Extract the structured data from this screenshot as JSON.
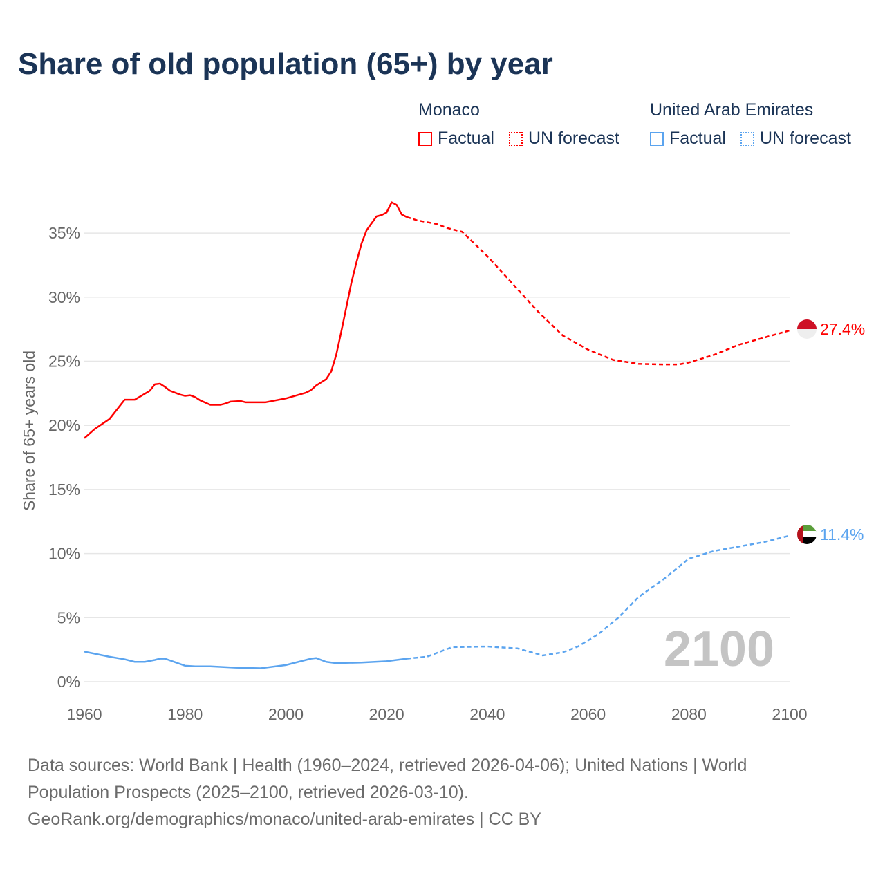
{
  "title": "Share of old population (65+) by year",
  "legend": {
    "groups": [
      {
        "name": "Monaco",
        "factual": "Factual",
        "forecast": "UN forecast",
        "color": "#ff0000"
      },
      {
        "name": "United Arab Emirates",
        "factual": "Factual",
        "forecast": "UN forecast",
        "color": "#5ba4ef"
      }
    ]
  },
  "year_label": "2100",
  "footer": {
    "sources": "Data sources: World Bank | Health (1960–2024, retrieved 2026-04-06); United Nations | World Population Prospects (2025–2100, retrieved 2026-03-10).",
    "link": "GeoRank.org/demographics/monaco/united-arab-emirates | CC BY"
  },
  "chart_data": {
    "type": "line",
    "title": "Share of old population (65+) by year",
    "xlabel": "",
    "ylabel": "Share of 65+ years old",
    "xlim": [
      1960,
      2100
    ],
    "ylim": [
      0,
      37.5
    ],
    "x_ticks": [
      "1960",
      "1980",
      "2000",
      "2020",
      "2040",
      "2060",
      "2080",
      "2100"
    ],
    "y_ticks": [
      "0%",
      "5%",
      "10%",
      "15%",
      "20%",
      "25%",
      "30%",
      "35%"
    ],
    "grid": true,
    "series": [
      {
        "name": "Monaco",
        "color": "#ff0000",
        "end_label": "27.4%",
        "factual": [
          [
            1960,
            19.0
          ],
          [
            1962,
            19.7
          ],
          [
            1965,
            20.5
          ],
          [
            1968,
            22.0
          ],
          [
            1970,
            22.0
          ],
          [
            1973,
            22.7
          ],
          [
            1974,
            23.2
          ],
          [
            1975,
            23.25
          ],
          [
            1976,
            23.0
          ],
          [
            1977,
            22.7
          ],
          [
            1979,
            22.4
          ],
          [
            1980,
            22.3
          ],
          [
            1981,
            22.35
          ],
          [
            1982,
            22.2
          ],
          [
            1983,
            21.95
          ],
          [
            1985,
            21.6
          ],
          [
            1987,
            21.6
          ],
          [
            1988,
            21.7
          ],
          [
            1989,
            21.85
          ],
          [
            1991,
            21.9
          ],
          [
            1992,
            21.8
          ],
          [
            1996,
            21.8
          ],
          [
            2000,
            22.1
          ],
          [
            2004,
            22.55
          ],
          [
            2005,
            22.75
          ],
          [
            2006,
            23.1
          ],
          [
            2007,
            23.35
          ],
          [
            2008,
            23.6
          ],
          [
            2009,
            24.2
          ],
          [
            2010,
            25.5
          ],
          [
            2011,
            27.3
          ],
          [
            2012,
            29.2
          ],
          [
            2013,
            31.1
          ],
          [
            2014,
            32.7
          ],
          [
            2015,
            34.15
          ],
          [
            2016,
            35.2
          ],
          [
            2018,
            36.3
          ],
          [
            2019,
            36.4
          ],
          [
            2020,
            36.6
          ],
          [
            2021,
            37.4
          ],
          [
            2022,
            37.2
          ],
          [
            2023,
            36.45
          ],
          [
            2024,
            36.25
          ]
        ],
        "forecast": [
          [
            2024,
            36.25
          ],
          [
            2026,
            36.0
          ],
          [
            2030,
            35.7
          ],
          [
            2032,
            35.4
          ],
          [
            2035,
            35.1
          ],
          [
            2040,
            33.2
          ],
          [
            2045,
            31.05
          ],
          [
            2050,
            28.9
          ],
          [
            2055,
            27.0
          ],
          [
            2060,
            25.9
          ],
          [
            2065,
            25.1
          ],
          [
            2070,
            24.8
          ],
          [
            2075,
            24.75
          ],
          [
            2078,
            24.75
          ],
          [
            2080,
            24.9
          ],
          [
            2085,
            25.5
          ],
          [
            2090,
            26.3
          ],
          [
            2095,
            26.85
          ],
          [
            2100,
            27.4
          ]
        ]
      },
      {
        "name": "United Arab Emirates",
        "color": "#5ba4ef",
        "end_label": "11.4%",
        "factual": [
          [
            1960,
            2.35
          ],
          [
            1965,
            1.95
          ],
          [
            1968,
            1.75
          ],
          [
            1970,
            1.55
          ],
          [
            1972,
            1.55
          ],
          [
            1974,
            1.7
          ],
          [
            1975,
            1.8
          ],
          [
            1976,
            1.8
          ],
          [
            1980,
            1.25
          ],
          [
            1982,
            1.2
          ],
          [
            1985,
            1.2
          ],
          [
            1990,
            1.1
          ],
          [
            1995,
            1.05
          ],
          [
            2000,
            1.3
          ],
          [
            2005,
            1.8
          ],
          [
            2006,
            1.85
          ],
          [
            2008,
            1.55
          ],
          [
            2010,
            1.45
          ],
          [
            2015,
            1.5
          ],
          [
            2020,
            1.6
          ],
          [
            2024,
            1.8
          ]
        ],
        "forecast": [
          [
            2024,
            1.8
          ],
          [
            2028,
            1.95
          ],
          [
            2033,
            2.7
          ],
          [
            2040,
            2.75
          ],
          [
            2046,
            2.6
          ],
          [
            2051,
            2.05
          ],
          [
            2055,
            2.3
          ],
          [
            2058,
            2.75
          ],
          [
            2062,
            3.7
          ],
          [
            2066,
            5.0
          ],
          [
            2070,
            6.6
          ],
          [
            2075,
            8.0
          ],
          [
            2080,
            9.6
          ],
          [
            2085,
            10.2
          ],
          [
            2090,
            10.55
          ],
          [
            2095,
            10.9
          ],
          [
            2100,
            11.4
          ]
        ]
      }
    ]
  }
}
